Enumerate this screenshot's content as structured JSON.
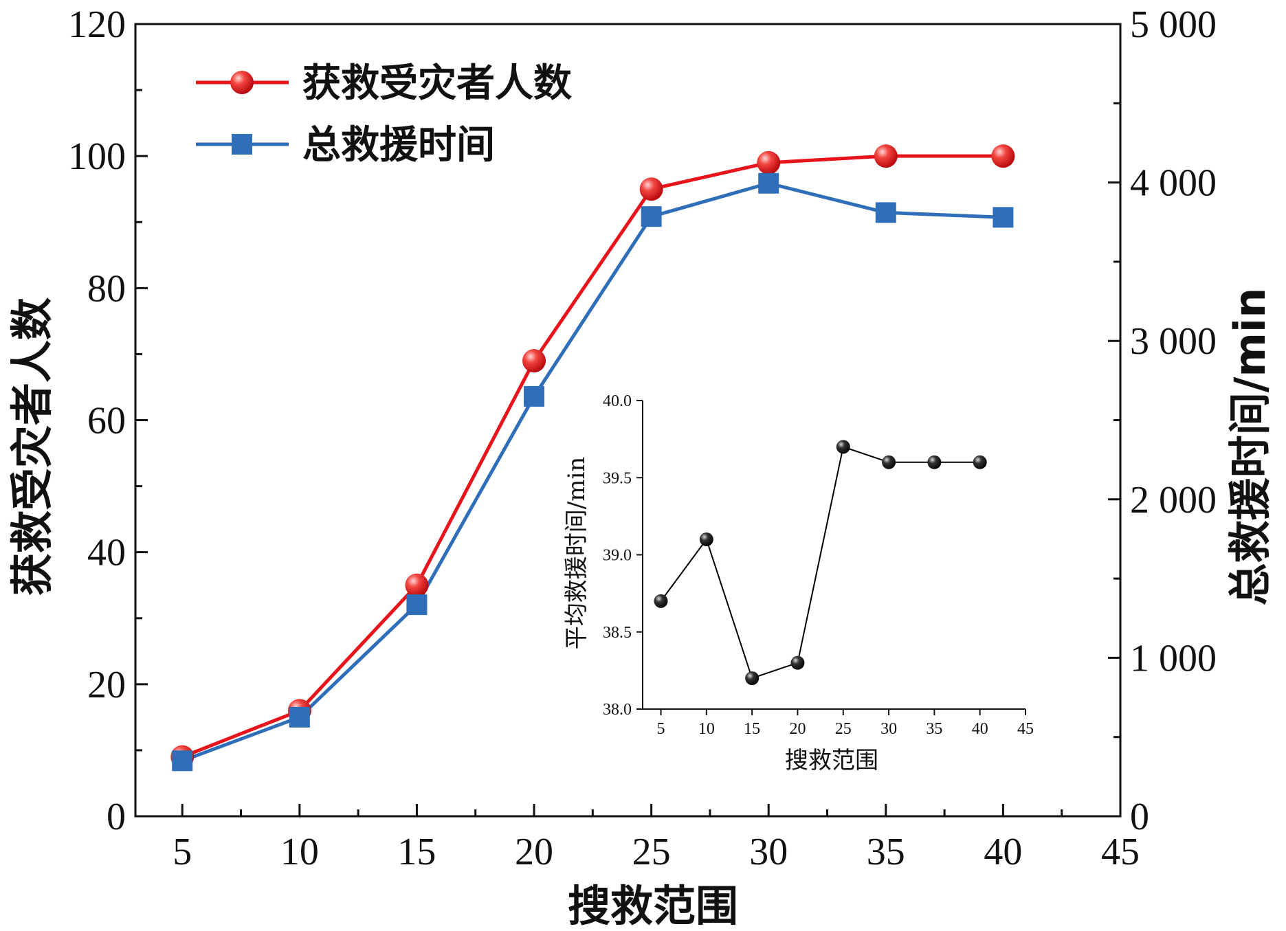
{
  "chart_data": [
    {
      "type": "line",
      "x": [
        5,
        10,
        15,
        20,
        25,
        30,
        35,
        40
      ],
      "xlabel": "搜救范围",
      "xlim": [
        3,
        45
      ],
      "x_ticks": [
        5,
        10,
        15,
        20,
        25,
        30,
        35,
        40,
        45
      ],
      "x_tick_labels": [
        "5",
        "10",
        "15",
        "20",
        "25",
        "30",
        "35",
        "40",
        "45"
      ],
      "ylabel_left": "获救受灾者人数",
      "ylim_left": [
        0,
        120
      ],
      "y_ticks_left": [
        0,
        20,
        40,
        60,
        80,
        100,
        120
      ],
      "y_tick_labels_left": [
        "0",
        "20",
        "40",
        "60",
        "80",
        "100",
        "120"
      ],
      "ylabel_right": "总救援时间/min",
      "ylim_right": [
        0,
        5000
      ],
      "y_ticks_right": [
        0,
        1000,
        2000,
        3000,
        4000,
        5000
      ],
      "y_tick_labels_right": [
        "0",
        "1 000",
        "2 000",
        "3 000",
        "4 000",
        "5 000"
      ],
      "grid": false,
      "legend_position": "top-left",
      "series": [
        {
          "name": "获救受灾者人数",
          "axis": "left",
          "color": "#e8141c",
          "marker": "circle",
          "values": [
            9,
            16,
            35,
            69,
            95,
            99,
            100,
            100
          ]
        },
        {
          "name": "总救援时间",
          "axis": "right",
          "color": "#2f6eb8",
          "marker": "square",
          "values": [
            350,
            625,
            1335,
            2650,
            3785,
            3995,
            3810,
            3780
          ]
        }
      ]
    },
    {
      "type": "line",
      "inset": true,
      "x": [
        5,
        10,
        15,
        20,
        25,
        30,
        35,
        40
      ],
      "xlabel": "搜救范围",
      "xlim": [
        3,
        45
      ],
      "x_ticks": [
        5,
        10,
        15,
        20,
        25,
        30,
        35,
        40,
        45
      ],
      "x_tick_labels": [
        "5",
        "10",
        "15",
        "20",
        "25",
        "30",
        "35",
        "40",
        "45"
      ],
      "ylabel": "平均救援时间/min",
      "ylim": [
        38.0,
        40.0
      ],
      "y_ticks": [
        38.0,
        38.5,
        39.0,
        39.5,
        40.0
      ],
      "y_tick_labels": [
        "38.0",
        "38.5",
        "39.0",
        "39.5",
        "40.0"
      ],
      "series": [
        {
          "color": "#000000",
          "marker": "circle",
          "values": [
            38.7,
            39.1,
            38.2,
            38.3,
            39.7,
            39.6,
            39.6,
            39.6
          ]
        }
      ]
    }
  ]
}
